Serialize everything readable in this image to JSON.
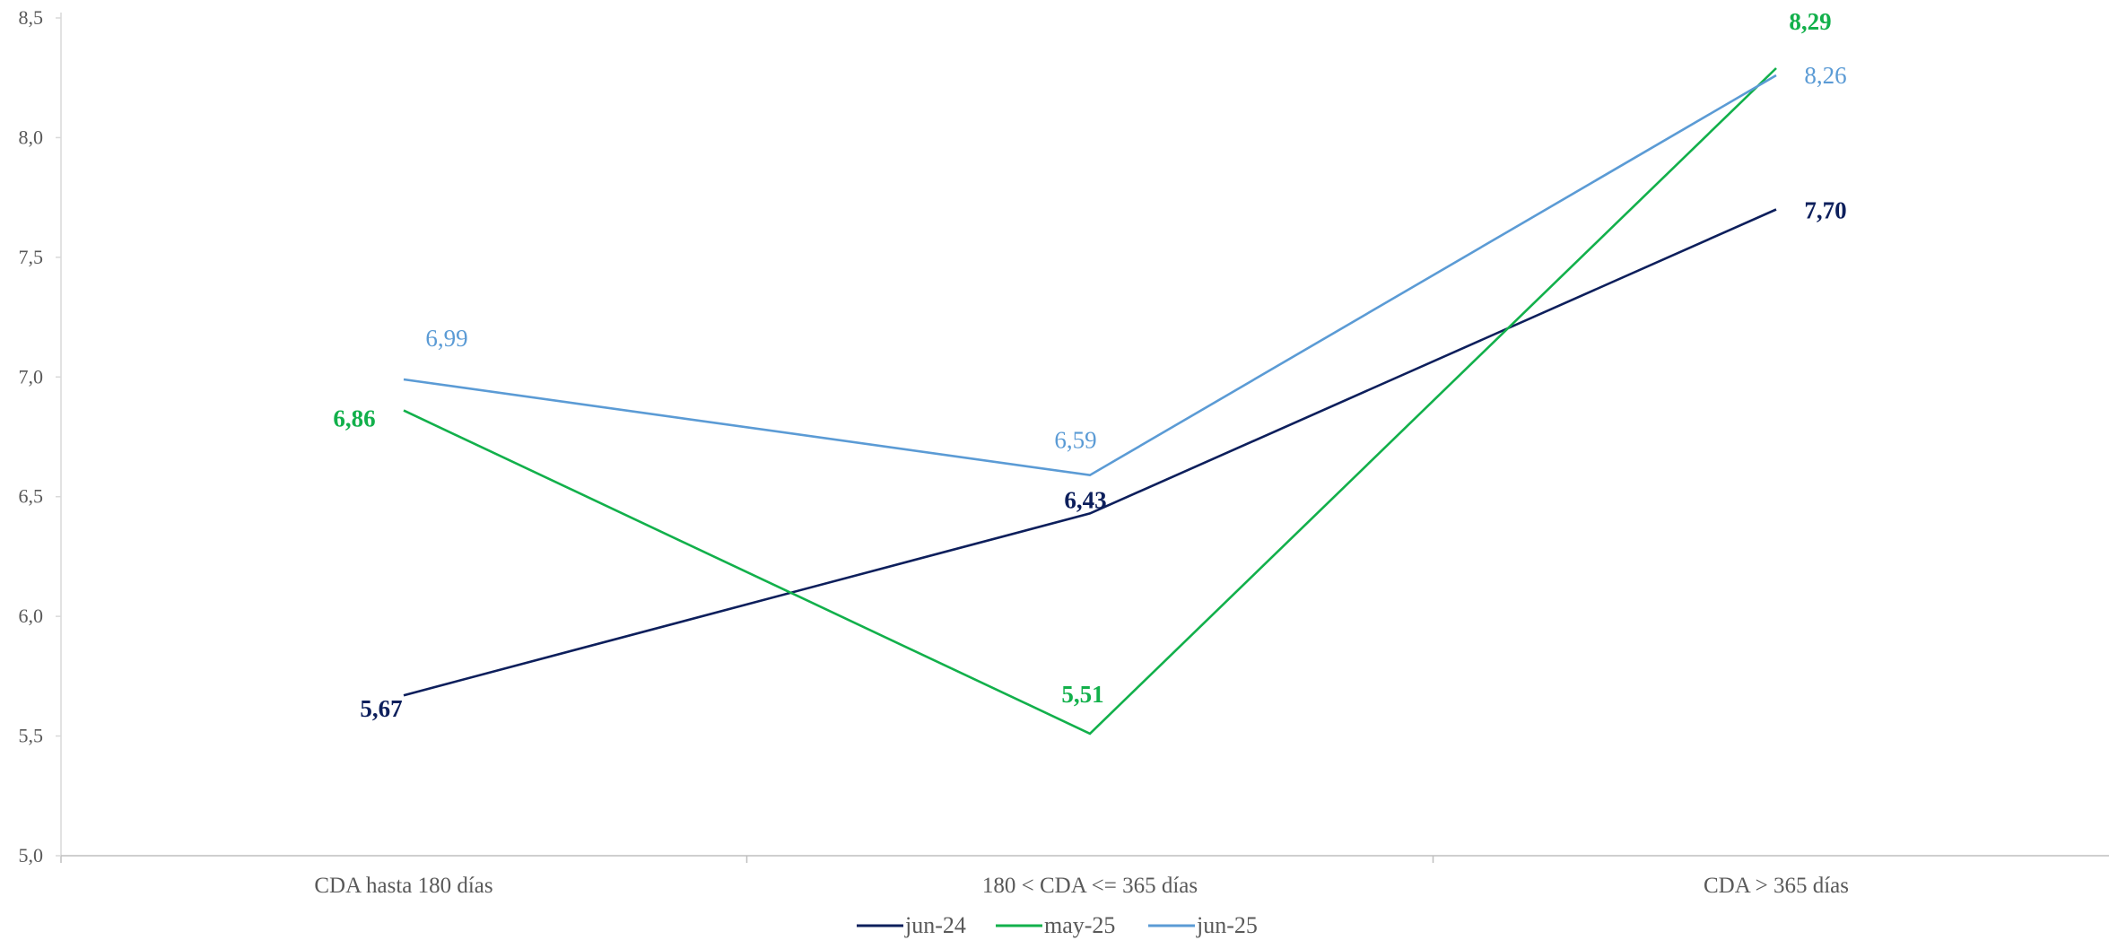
{
  "chart_data": {
    "type": "line",
    "title": "",
    "xlabel": "",
    "ylabel": "",
    "categories": [
      "CDA hasta 180 días",
      "180 < CDA <= 365 días",
      "CDA > 365 días"
    ],
    "ylim": [
      5.0,
      8.5
    ],
    "yticks": [
      "5,0",
      "5,5",
      "6,0",
      "6,5",
      "7,0",
      "7,5",
      "8,0",
      "8,5"
    ],
    "ytick_values": [
      5.0,
      5.5,
      6.0,
      6.5,
      7.0,
      7.5,
      8.0,
      8.5
    ],
    "grid": false,
    "legend_position": "bottom",
    "series": [
      {
        "name": "jun-24",
        "color": "#0d1f5c",
        "values": [
          5.67,
          6.43,
          7.7
        ],
        "labels": [
          "5,67",
          "6,43",
          "7,70"
        ],
        "bold_labels": true
      },
      {
        "name": "may-25",
        "color": "#12b04b",
        "values": [
          6.86,
          5.51,
          8.29
        ],
        "labels": [
          "6,86",
          "5,51",
          "8,29"
        ],
        "bold_labels": true
      },
      {
        "name": "jun-25",
        "color": "#5b9bd5",
        "values": [
          6.99,
          6.59,
          8.26
        ],
        "labels": [
          "6,99",
          "6,59",
          "8,26"
        ],
        "bold_labels": false
      }
    ]
  }
}
